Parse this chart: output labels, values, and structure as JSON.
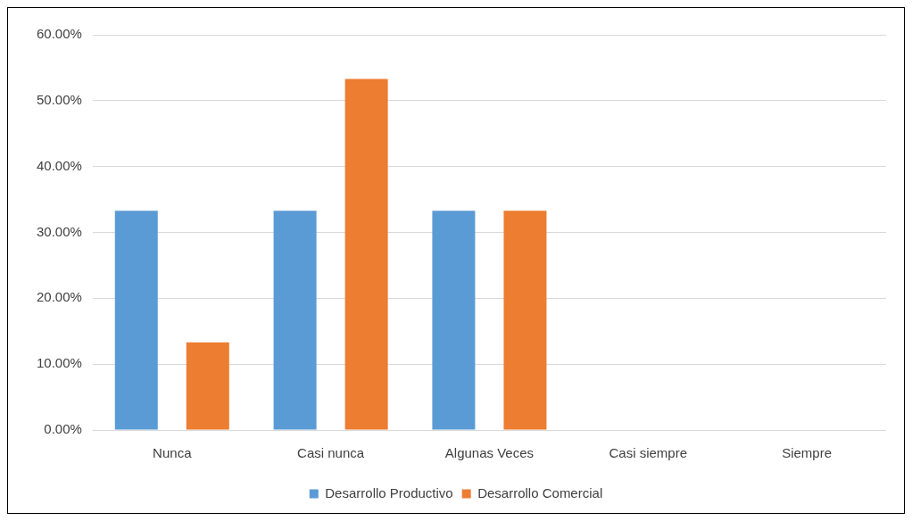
{
  "chart_data": {
    "type": "bar",
    "categories": [
      "Nunca",
      "Casi nunca",
      "Algunas Veces",
      "Casi siempre",
      "Siempre"
    ],
    "series": [
      {
        "name": "Desarrollo Productivo",
        "color": "#5b9bd5",
        "values": [
          33.3,
          33.3,
          33.3,
          0,
          0
        ]
      },
      {
        "name": "Desarrollo Comercial",
        "color": "#ed7d31",
        "values": [
          13.3,
          53.3,
          33.3,
          0,
          0
        ]
      }
    ],
    "ylim": [
      0,
      60
    ],
    "yticks": [
      {
        "value": 0,
        "label": "0.00%"
      },
      {
        "value": 10,
        "label": "10.00%"
      },
      {
        "value": 20,
        "label": "20.00%"
      },
      {
        "value": 30,
        "label": "30.00%"
      },
      {
        "value": 40,
        "label": "40.00%"
      },
      {
        "value": 50,
        "label": "50.00%"
      },
      {
        "value": 60,
        "label": "60.00%"
      }
    ],
    "grid": "y",
    "legend": "bottom"
  }
}
